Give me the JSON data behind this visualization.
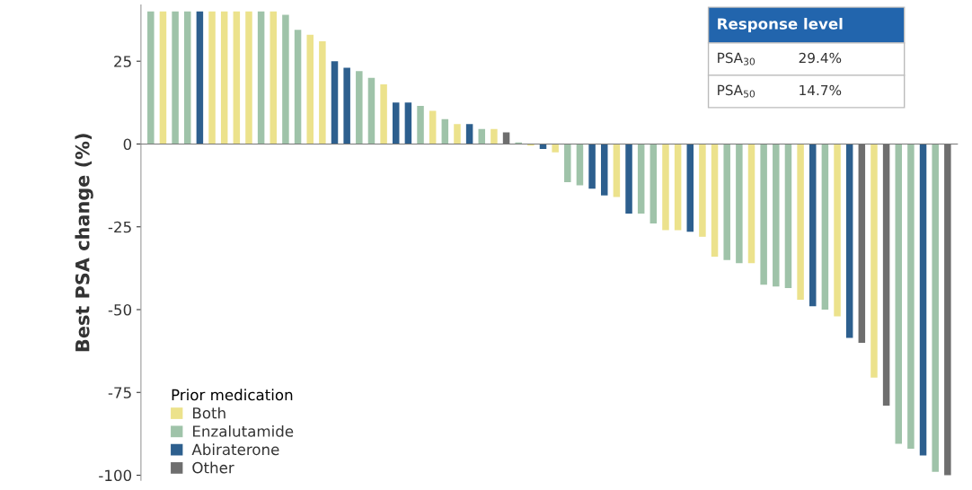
{
  "chart_data": {
    "type": "bar",
    "ylabel": "Best PSA change (%)",
    "legend_title": "Prior medication",
    "legend": "bottom left",
    "categories": [
      null,
      null,
      null,
      null,
      null,
      null,
      null,
      null,
      null,
      null,
      null,
      null,
      null,
      null,
      null,
      null,
      null,
      null,
      null,
      null,
      null,
      null,
      null,
      null,
      null,
      null,
      null,
      null,
      null,
      null,
      null,
      null,
      null,
      null,
      null,
      null,
      null,
      null,
      null,
      null,
      null,
      null,
      null,
      null,
      null,
      null,
      null,
      null,
      null,
      null,
      null,
      null,
      null,
      null,
      null,
      null,
      null,
      null,
      null,
      null,
      null,
      null,
      null,
      null,
      null,
      null
    ],
    "series": [
      {
        "name": "Both",
        "color": "#ece28c",
        "values": [
          null,
          40,
          null,
          null,
          null,
          40,
          40,
          40,
          40,
          null,
          40,
          null,
          null,
          33,
          31,
          null,
          null,
          null,
          null,
          18,
          null,
          null,
          null,
          10,
          null,
          6,
          null,
          null,
          4.5,
          null,
          null,
          -0.5,
          null,
          -2.5,
          null,
          null,
          null,
          null,
          -16,
          null,
          null,
          null,
          -26,
          -26,
          null,
          -28,
          -34,
          null,
          null,
          -36,
          null,
          null,
          null,
          -47,
          null,
          null,
          -52,
          null,
          null,
          -70.5,
          null,
          null,
          null,
          null,
          null,
          null
        ]
      },
      {
        "name": "Enzalutamide",
        "color": "#9fc3a9",
        "values": [
          40,
          null,
          40,
          40,
          null,
          null,
          null,
          null,
          null,
          40,
          null,
          39,
          34.5,
          null,
          null,
          null,
          null,
          22,
          20,
          null,
          null,
          null,
          11.5,
          null,
          7.5,
          null,
          null,
          4.5,
          null,
          null,
          0.5,
          null,
          null,
          null,
          -11.5,
          -12.5,
          null,
          null,
          null,
          null,
          -21,
          -24,
          null,
          null,
          null,
          null,
          null,
          -35,
          -36,
          null,
          -42.5,
          -43,
          -43.5,
          null,
          null,
          -50,
          null,
          null,
          null,
          null,
          null,
          -90.5,
          -92,
          null,
          -99,
          null
        ]
      },
      {
        "name": "Abiraterone",
        "color": "#2d5f8e",
        "values": [
          null,
          null,
          null,
          null,
          40,
          null,
          null,
          null,
          null,
          null,
          null,
          null,
          null,
          null,
          null,
          25,
          23,
          null,
          null,
          null,
          12.5,
          12.5,
          null,
          null,
          null,
          null,
          6,
          null,
          null,
          null,
          null,
          null,
          -1.5,
          null,
          null,
          null,
          -13.5,
          -15.5,
          null,
          -21,
          null,
          null,
          null,
          null,
          -26.5,
          null,
          null,
          null,
          null,
          null,
          null,
          null,
          null,
          null,
          -49,
          null,
          null,
          -58.5,
          null,
          null,
          null,
          null,
          null,
          -94,
          null,
          null
        ]
      },
      {
        "name": "Other",
        "color": "#6e6e6e",
        "values": [
          null,
          null,
          null,
          null,
          null,
          null,
          null,
          null,
          null,
          null,
          null,
          null,
          null,
          null,
          null,
          null,
          null,
          null,
          null,
          null,
          null,
          null,
          null,
          null,
          null,
          null,
          null,
          null,
          null,
          3.5,
          null,
          null,
          null,
          null,
          null,
          null,
          null,
          null,
          null,
          null,
          null,
          null,
          null,
          null,
          null,
          null,
          null,
          null,
          null,
          null,
          null,
          null,
          null,
          null,
          null,
          null,
          null,
          null,
          -60,
          null,
          -79,
          null,
          null,
          null,
          null,
          -100
        ]
      }
    ],
    "ylim": [
      -101.5,
      42
    ],
    "yticks": [
      25,
      0,
      -25,
      -50,
      -75,
      -100
    ],
    "annotations": [
      "Response level",
      "PSA$_{30}$",
      "29.4%",
      "PSA$_{50}$",
      "14.7%"
    ]
  }
}
